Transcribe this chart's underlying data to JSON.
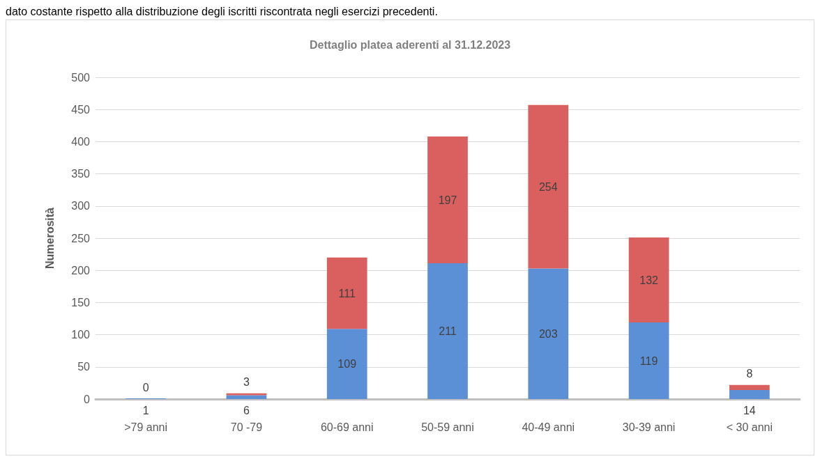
{
  "chart_data": {
    "type": "bar",
    "title": "Dettaglio platea aderenti al 31.12.2023",
    "ylabel": "Numerosità",
    "annotations": [
      "dato costante rispetto alla distribuzione degli iscritti riscontrata negli esercizi precedenti."
    ],
    "categories": [
      ">79 anni",
      "70 -79",
      "60-69 anni",
      "50-59 anni",
      "40-49 anni",
      "30-39 anni",
      "< 30 anni"
    ],
    "stacked": true,
    "series": [
      {
        "color": "#5b8fd6",
        "values": [
          1,
          6,
          109,
          211,
          203,
          119,
          14
        ]
      },
      {
        "color": "#d9605e",
        "values": [
          0,
          3,
          111,
          197,
          254,
          132,
          8
        ]
      }
    ],
    "ylim": [
      0,
      500
    ],
    "yticks": [
      0,
      50,
      100,
      150,
      200,
      250,
      300,
      350,
      400,
      450,
      500
    ],
    "grid": "y",
    "data_labels": true
  }
}
